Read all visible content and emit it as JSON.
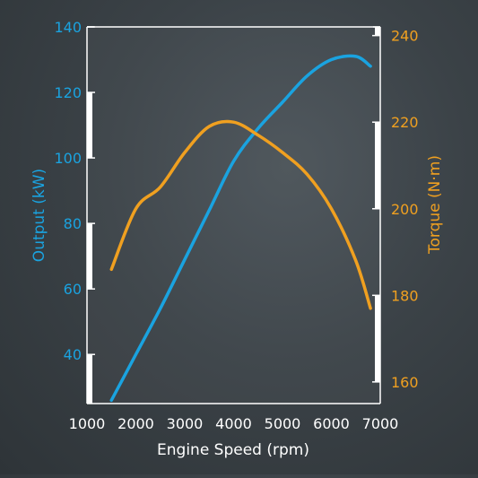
{
  "chart_data": {
    "type": "line",
    "xlabel": "Engine Speed (rpm)",
    "xlim": [
      1000,
      7000
    ],
    "x_ticks": [
      1000,
      2000,
      3000,
      4000,
      5000,
      6000,
      7000
    ],
    "y_left": {
      "label": "Output (kW)",
      "ylim": [
        25,
        140
      ],
      "ticks": [
        40,
        60,
        80,
        100,
        120,
        140
      ]
    },
    "y_right": {
      "label": "Torque (N·m)",
      "ylim": [
        155,
        242
      ],
      "ticks": [
        160,
        180,
        200,
        220,
        240
      ]
    },
    "series": [
      {
        "name": "Output (kW)",
        "axis": "left",
        "color": "#1aa3e0",
        "x": [
          1500,
          2000,
          2500,
          3000,
          3500,
          4000,
          4500,
          5000,
          5500,
          6000,
          6500,
          6800
        ],
        "y": [
          26,
          40,
          54,
          69,
          84,
          99,
          109,
          117,
          125,
          130,
          131,
          128
        ]
      },
      {
        "name": "Torque (N·m)",
        "axis": "right",
        "color": "#f0a020",
        "x": [
          1500,
          2000,
          2500,
          3000,
          3500,
          4000,
          4500,
          5000,
          5500,
          6000,
          6500,
          6800
        ],
        "y": [
          186,
          200,
          205,
          213,
          219,
          220,
          217,
          213,
          208,
          200,
          188,
          177
        ]
      }
    ],
    "grid": false,
    "legend": "none"
  }
}
